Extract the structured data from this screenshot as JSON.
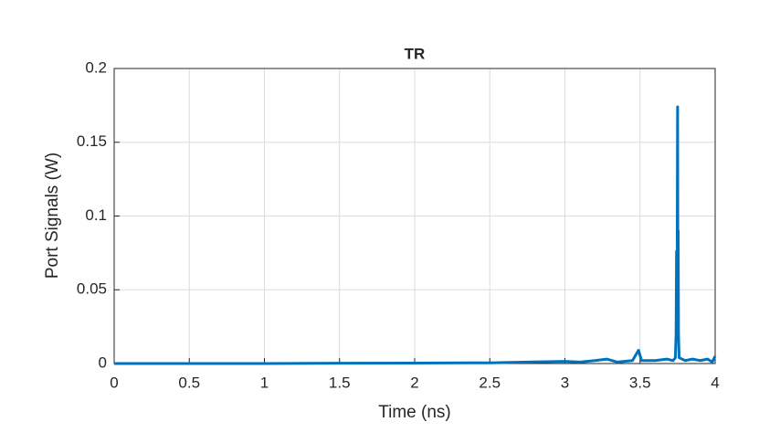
{
  "chart_data": {
    "type": "line",
    "title": "TR",
    "xlabel": "Time (ns)",
    "ylabel": "Port Signals (W)",
    "x": [
      0,
      0.5,
      1,
      1.5,
      2,
      2.5,
      2.75,
      3.0,
      3.1,
      3.2,
      3.28,
      3.35,
      3.45,
      3.49,
      3.51,
      3.6,
      3.68,
      3.72,
      3.735,
      3.74,
      3.743,
      3.746,
      3.748,
      3.75,
      3.752,
      3.754,
      3.756,
      3.76,
      3.8,
      3.85,
      3.9,
      3.95,
      3.98,
      4.0
    ],
    "series": [
      {
        "color": "#0072bd",
        "values": [
          0,
          0,
          0,
          0.0002,
          0.0003,
          0.0005,
          0.001,
          0.0015,
          0.001,
          0.002,
          0.003,
          0.001,
          0.002,
          0.009,
          0.002,
          0.002,
          0.003,
          0.002,
          0.004,
          0.02,
          0.076,
          0.03,
          0.1,
          0.174,
          0.05,
          0.09,
          0.02,
          0.004,
          0.002,
          0.003,
          0.002,
          0.003,
          0.001,
          0.005
        ]
      }
    ],
    "xlim": [
      0,
      4
    ],
    "ylim": [
      0,
      0.2
    ],
    "xticks": [
      0,
      0.5,
      1,
      1.5,
      2,
      2.5,
      3,
      3.5,
      4
    ],
    "yticks": [
      0,
      0.05,
      0.1,
      0.15,
      0.2
    ],
    "grid": true
  }
}
